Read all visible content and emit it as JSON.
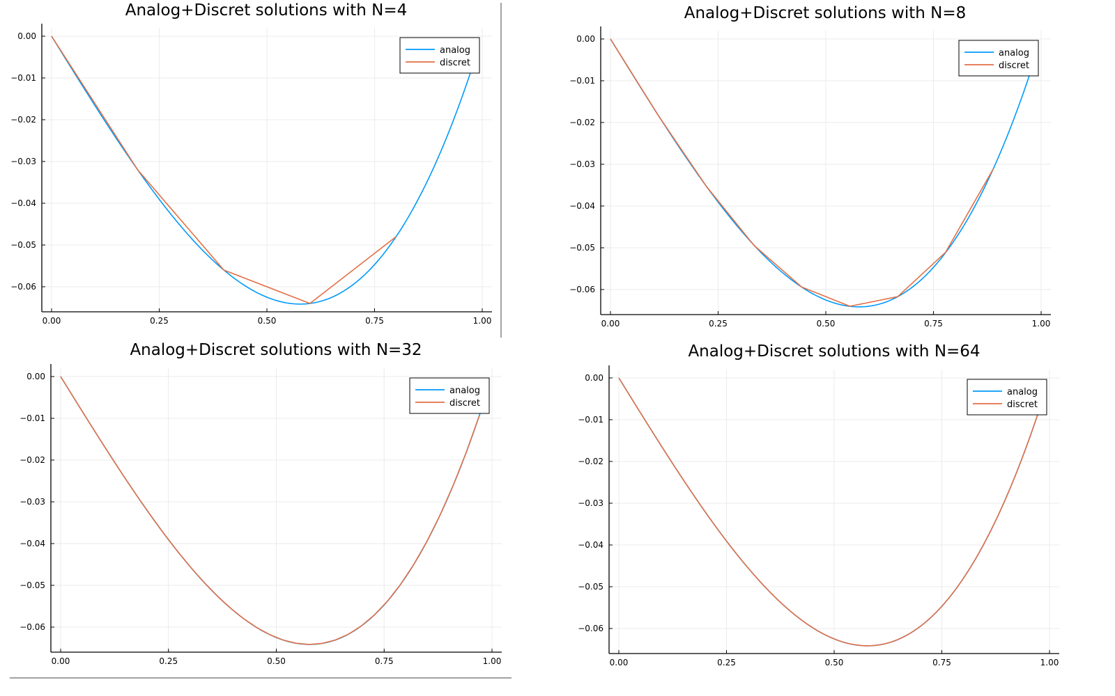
{
  "colors": {
    "analog": "#009af9",
    "discret": "#e26f46"
  },
  "chart_data": [
    {
      "type": "line",
      "title": "Analog+Discret solutions with N=4",
      "xlim": [
        0,
        1
      ],
      "ylim": [
        -0.066,
        0.002
      ],
      "x_ticks": [
        0,
        0.25,
        0.5,
        0.75,
        1.0
      ],
      "x_tick_labels": [
        "0.00",
        "0.25",
        "0.50",
        "0.75",
        "1.00"
      ],
      "y_ticks": [
        0,
        -0.01,
        -0.02,
        -0.03,
        -0.04,
        -0.05,
        -0.06
      ],
      "y_tick_labels": [
        "0.00",
        "−0.01",
        "−0.02",
        "−0.03",
        "−0.04",
        "−0.05",
        "−0.06"
      ],
      "grid": true,
      "legend": "top-right",
      "series": [
        {
          "name": "analog",
          "function": "(x^3-x)/6",
          "x_range": [
            0,
            0.99
          ]
        },
        {
          "name": "discret",
          "x": [
            0,
            0.2,
            0.4,
            0.6,
            0.8
          ],
          "y": [
            0,
            -0.032,
            -0.056,
            -0.064,
            -0.048
          ]
        }
      ]
    },
    {
      "type": "line",
      "title": "Analog+Discret solutions with N=8",
      "xlim": [
        0,
        1
      ],
      "ylim": [
        -0.066,
        0.002
      ],
      "x_ticks": [
        0,
        0.25,
        0.5,
        0.75,
        1.0
      ],
      "x_tick_labels": [
        "0.00",
        "0.25",
        "0.50",
        "0.75",
        "1.00"
      ],
      "y_ticks": [
        0,
        -0.01,
        -0.02,
        -0.03,
        -0.04,
        -0.05,
        -0.06
      ],
      "y_tick_labels": [
        "0.00",
        "−0.01",
        "−0.02",
        "−0.03",
        "−0.04",
        "−0.05",
        "−0.06"
      ],
      "grid": true,
      "legend": "top-right",
      "series": [
        {
          "name": "analog",
          "function": "(x^3-x)/6",
          "x_range": [
            0,
            0.99
          ]
        },
        {
          "name": "discret",
          "x": [
            0,
            0.111,
            0.222,
            0.333,
            0.444,
            0.556,
            0.667,
            0.778,
            0.889
          ],
          "y": [
            0,
            -0.0183,
            -0.0352,
            -0.0494,
            -0.0594,
            -0.064,
            -0.0617,
            -0.0511,
            -0.0311
          ]
        }
      ]
    },
    {
      "type": "line",
      "title": "Analog+Discret solutions with N=32",
      "xlim": [
        0,
        1
      ],
      "ylim": [
        -0.066,
        0.002
      ],
      "x_ticks": [
        0,
        0.25,
        0.5,
        0.75,
        1.0
      ],
      "x_tick_labels": [
        "0.00",
        "0.25",
        "0.50",
        "0.75",
        "1.00"
      ],
      "y_ticks": [
        0,
        -0.01,
        -0.02,
        -0.03,
        -0.04,
        -0.05,
        -0.06
      ],
      "y_tick_labels": [
        "0.00",
        "−0.01",
        "−0.02",
        "−0.03",
        "−0.04",
        "−0.05",
        "−0.06"
      ],
      "grid": true,
      "legend": "top-right",
      "series": [
        {
          "name": "analog",
          "function": "(x^3-x)/6",
          "x_range": [
            0,
            0.99
          ]
        },
        {
          "name": "discret",
          "function": "(x^3-x)/6",
          "samples": 33,
          "x_range": [
            0,
            0.97
          ]
        }
      ]
    },
    {
      "type": "line",
      "title": "Analog+Discret solutions with N=64",
      "xlim": [
        0,
        1
      ],
      "ylim": [
        -0.066,
        0.002
      ],
      "x_ticks": [
        0,
        0.25,
        0.5,
        0.75,
        1.0
      ],
      "x_tick_labels": [
        "0.00",
        "0.25",
        "0.50",
        "0.75",
        "1.00"
      ],
      "y_ticks": [
        0,
        -0.01,
        -0.02,
        -0.03,
        -0.04,
        -0.05,
        -0.06
      ],
      "y_tick_labels": [
        "0.00",
        "−0.01",
        "−0.02",
        "−0.03",
        "−0.04",
        "−0.05",
        "−0.06"
      ],
      "grid": true,
      "legend": "top-right",
      "series": [
        {
          "name": "analog",
          "function": "(x^3-x)/6",
          "x_range": [
            0,
            0.99
          ]
        },
        {
          "name": "discret",
          "function": "(x^3-x)/6",
          "samples": 65,
          "x_range": [
            0,
            0.985
          ]
        }
      ]
    }
  ]
}
